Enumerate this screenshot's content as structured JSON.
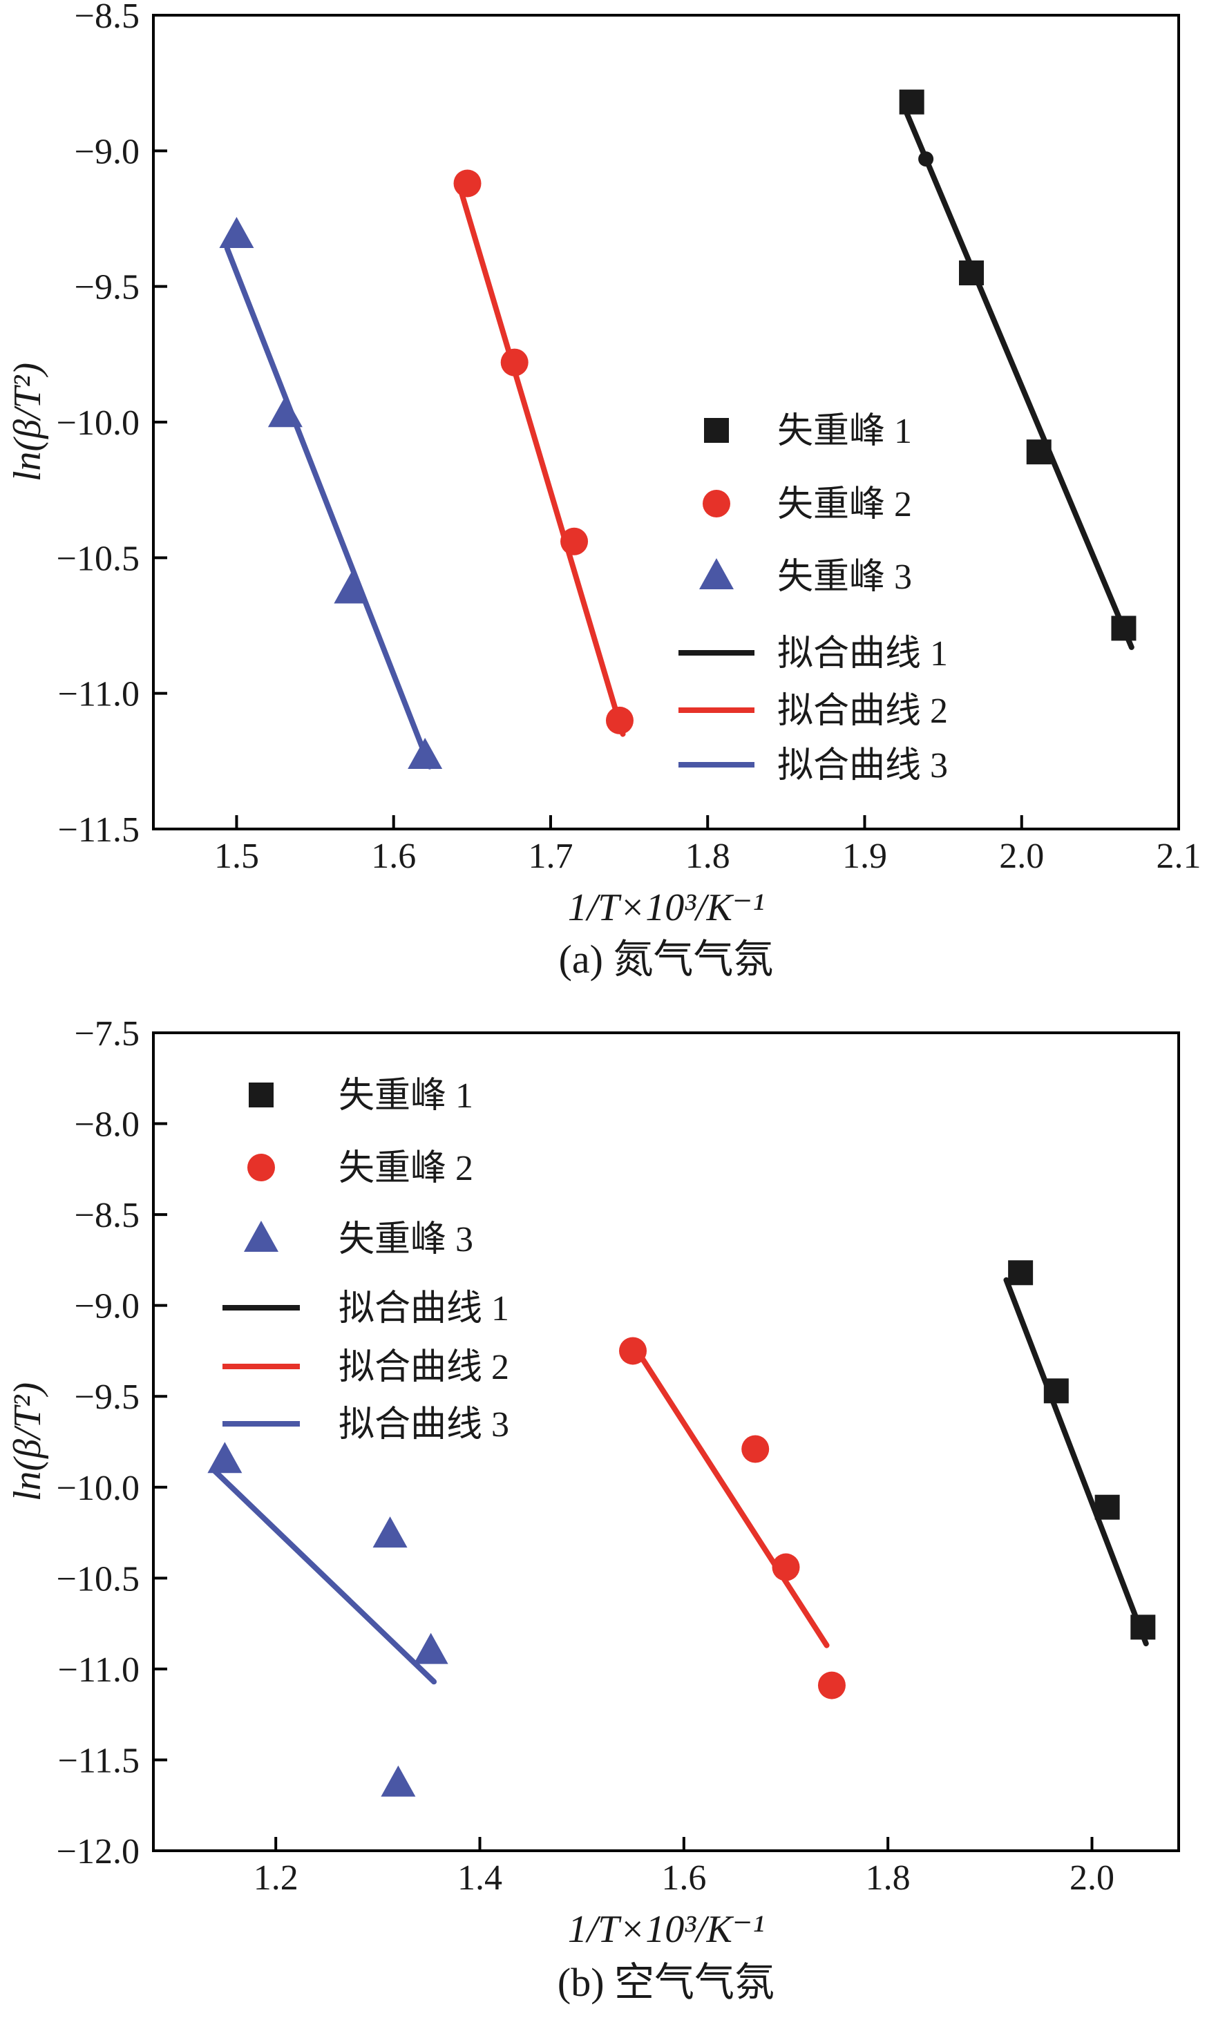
{
  "chart_data": [
    {
      "id": "a",
      "type": "scatter",
      "caption": "(a) 氮气气氛",
      "xlabel": "1/T×10³/K⁻¹",
      "ylabel": "ln(β/T²)",
      "xlim": [
        1.447,
        2.1
      ],
      "ylim": [
        -11.5,
        -8.5
      ],
      "xticks": [
        1.5,
        1.6,
        1.7,
        1.8,
        1.9,
        2.0,
        2.1
      ],
      "yticks": [
        -8.5,
        -9.0,
        -9.5,
        -10.0,
        -10.5,
        -11.0,
        -11.5
      ],
      "grid": false,
      "legend_position": "middle-right",
      "series": [
        {
          "name": "失重峰 1",
          "marker": "square",
          "color": "#1a1a1a",
          "points": [
            [
              1.93,
              -8.82
            ],
            [
              1.968,
              -9.45
            ],
            [
              2.011,
              -10.11
            ],
            [
              2.065,
              -10.76
            ]
          ]
        },
        {
          "name": "失重峰 2",
          "marker": "circle",
          "color": "#e63229",
          "points": [
            [
              1.647,
              -9.12
            ],
            [
              1.677,
              -9.78
            ],
            [
              1.715,
              -10.44
            ],
            [
              1.744,
              -11.1
            ]
          ]
        },
        {
          "name": "失重峰 3",
          "marker": "triangle",
          "color": "#4a57a5",
          "points": [
            [
              1.5,
              -9.31
            ],
            [
              1.531,
              -9.97
            ],
            [
              1.573,
              -10.62
            ],
            [
              1.62,
              -11.23
            ]
          ]
        },
        {
          "name": "拟合曲线 1",
          "line": true,
          "color": "#1a1a1a",
          "points": [
            [
              1.926,
              -8.85
            ],
            [
              2.07,
              -10.83
            ]
          ]
        },
        {
          "name": "拟合曲线 2",
          "line": true,
          "color": "#e63229",
          "points": [
            [
              1.643,
              -9.15
            ],
            [
              1.746,
              -11.15
            ]
          ]
        },
        {
          "name": "拟合曲线 3",
          "line": true,
          "color": "#4a57a5",
          "points": [
            [
              1.494,
              -9.36
            ],
            [
              1.623,
              -11.27
            ]
          ]
        }
      ],
      "extra_points": [
        {
          "marker": "dot",
          "color": "#1a1a1a",
          "x": 1.939,
          "y": -9.03
        }
      ],
      "legend": {
        "entries": [
          {
            "label": "失重峰 1",
            "symbol": "square",
            "color": "#1a1a1a"
          },
          {
            "label": "失重峰 2",
            "symbol": "circle",
            "color": "#e63229"
          },
          {
            "label": "失重峰 3",
            "symbol": "triangle",
            "color": "#4a57a5"
          },
          {
            "label": "拟合曲线 1",
            "symbol": "line",
            "color": "#1a1a1a"
          },
          {
            "label": "拟合曲线 2",
            "symbol": "line",
            "color": "#e63229"
          },
          {
            "label": "拟合曲线 3",
            "symbol": "line",
            "color": "#4a57a5"
          }
        ]
      }
    },
    {
      "id": "b",
      "type": "scatter",
      "caption": "(b) 空气气氛",
      "xlabel": "1/T×10³/K⁻¹",
      "ylabel": "ln(β/T²)",
      "xlim": [
        1.08,
        2.085
      ],
      "ylim": [
        -12.0,
        -7.5
      ],
      "xticks": [
        1.2,
        1.4,
        1.6,
        1.8,
        2.0
      ],
      "yticks": [
        -7.5,
        -8.0,
        -8.5,
        -9.0,
        -9.5,
        -10.0,
        -10.5,
        -11.0,
        -11.5,
        -12.0
      ],
      "grid": false,
      "legend_position": "upper-left",
      "series": [
        {
          "name": "失重峰 1",
          "marker": "square",
          "color": "#1a1a1a",
          "points": [
            [
              1.93,
              -8.82
            ],
            [
              1.965,
              -9.47
            ],
            [
              2.015,
              -10.11
            ],
            [
              2.05,
              -10.77
            ]
          ]
        },
        {
          "name": "失重峰 2",
          "marker": "circle",
          "color": "#e63229",
          "points": [
            [
              1.55,
              -9.25
            ],
            [
              1.67,
              -9.79
            ],
            [
              1.7,
              -10.44
            ],
            [
              1.745,
              -11.09
            ]
          ]
        },
        {
          "name": "失重峰 3",
          "marker": "triangle",
          "color": "#4a57a5",
          "points": [
            [
              1.15,
              -9.85
            ],
            [
              1.312,
              -10.26
            ],
            [
              1.352,
              -10.9
            ],
            [
              1.32,
              -11.63
            ]
          ]
        },
        {
          "name": "拟合曲线 1",
          "line": true,
          "color": "#1a1a1a",
          "points": [
            [
              1.916,
              -8.86
            ],
            [
              2.053,
              -10.86
            ]
          ]
        },
        {
          "name": "拟合曲线 2",
          "line": true,
          "color": "#e63229",
          "points": [
            [
              1.551,
              -9.22
            ],
            [
              1.74,
              -10.87
            ]
          ]
        },
        {
          "name": "拟合曲线 3",
          "line": true,
          "color": "#4a57a5",
          "points": [
            [
              1.14,
              -9.91
            ],
            [
              1.355,
              -11.07
            ]
          ]
        }
      ],
      "extra_points": [],
      "legend": {
        "entries": [
          {
            "label": "失重峰 1",
            "symbol": "square",
            "color": "#1a1a1a"
          },
          {
            "label": "失重峰 2",
            "symbol": "circle",
            "color": "#e63229"
          },
          {
            "label": "失重峰 3",
            "symbol": "triangle",
            "color": "#4a57a5"
          },
          {
            "label": "拟合曲线 1",
            "symbol": "line",
            "color": "#1a1a1a"
          },
          {
            "label": "拟合曲线 2",
            "symbol": "line",
            "color": "#e63229"
          },
          {
            "label": "拟合曲线 3",
            "symbol": "line",
            "color": "#4a57a5"
          }
        ]
      }
    }
  ],
  "colors": {
    "black": "#1a1a1a",
    "red": "#e63229",
    "blue": "#4a57a5"
  }
}
